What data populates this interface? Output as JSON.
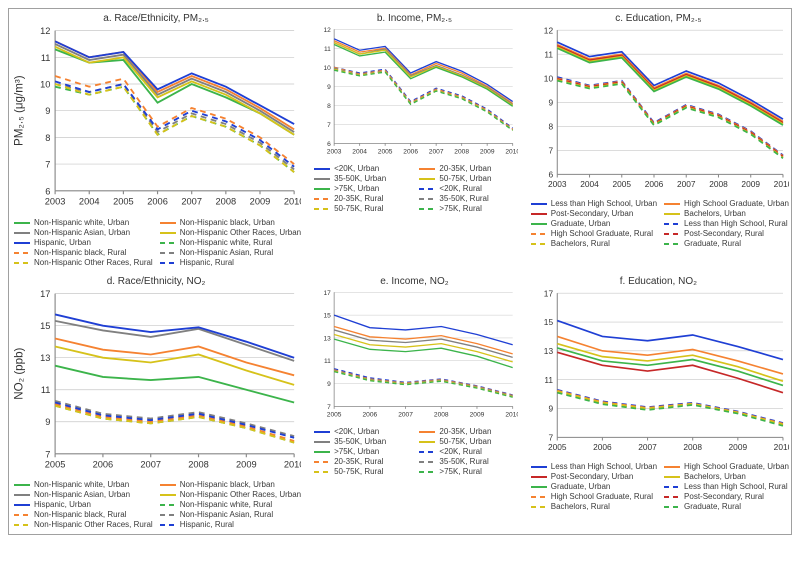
{
  "figure": {
    "background_color": "#ffffff",
    "border_color": "#a0a0a0",
    "grid_color": "#c8c8c8",
    "axis_color": "#8a8a8a",
    "label_fontsize": 10,
    "tick_fontsize": 8,
    "title_color": "#333333"
  },
  "panels": [
    {
      "id": "a",
      "title": "a. Race/Ethnicity, PM₂.₅",
      "ylabel": "PM₂.₅ (μg/m³)",
      "ylabel_fontsize": 10,
      "xticks": [
        2003,
        2004,
        2005,
        2006,
        2007,
        2008,
        2009,
        2010
      ],
      "ylim": [
        6,
        12
      ],
      "ytick_step": 1,
      "legend_cols": 2,
      "series": [
        {
          "label": "Non-Hispanic white, Urban",
          "color": "#3cb44b",
          "dash": "solid",
          "y": [
            11.3,
            10.8,
            10.9,
            9.3,
            10.0,
            9.5,
            8.9,
            8.1
          ]
        },
        {
          "label": "Non-Hispanic black, Urban",
          "color": "#f58231",
          "dash": "solid",
          "y": [
            11.6,
            11.0,
            11.2,
            9.7,
            10.3,
            9.8,
            9.1,
            8.3
          ]
        },
        {
          "label": "Non-Hispanic Asian, Urban",
          "color": "#808080",
          "dash": "solid",
          "y": [
            11.5,
            10.9,
            11.1,
            9.6,
            10.2,
            9.7,
            9.0,
            8.2
          ]
        },
        {
          "label": "Non-Hispanic Other Races, Urban",
          "color": "#d6c21a",
          "dash": "solid",
          "y": [
            11.4,
            10.8,
            11.0,
            9.5,
            10.1,
            9.6,
            8.9,
            8.1
          ]
        },
        {
          "label": "Hispanic, Urban",
          "color": "#1f3fd4",
          "dash": "solid",
          "y": [
            11.6,
            11.0,
            11.2,
            9.8,
            10.4,
            9.9,
            9.2,
            8.5
          ]
        },
        {
          "label": "Non-Hispanic white, Rural",
          "color": "#3cb44b",
          "dash": "dash",
          "y": [
            9.9,
            9.6,
            9.9,
            8.1,
            8.8,
            8.4,
            7.7,
            6.7
          ]
        },
        {
          "label": "Non-Hispanic black, Rural",
          "color": "#f58231",
          "dash": "dash",
          "y": [
            10.3,
            9.9,
            10.2,
            8.4,
            9.1,
            8.7,
            8.0,
            7.0
          ]
        },
        {
          "label": "Non-Hispanic Asian, Rural",
          "color": "#808080",
          "dash": "dash",
          "y": [
            10.0,
            9.7,
            10.0,
            8.2,
            8.9,
            8.5,
            7.8,
            6.8
          ]
        },
        {
          "label": "Non-Hispanic Other Races, Rural",
          "color": "#d6c21a",
          "dash": "dash",
          "y": [
            10.0,
            9.6,
            9.9,
            8.1,
            8.8,
            8.4,
            7.7,
            6.7
          ]
        },
        {
          "label": "Hispanic, Rural",
          "color": "#1f3fd4",
          "dash": "dash",
          "y": [
            10.1,
            9.7,
            10.0,
            8.3,
            9.0,
            8.6,
            7.9,
            6.9
          ]
        }
      ]
    },
    {
      "id": "b",
      "title": "b. Income, PM₂.₅",
      "ylabel": "",
      "xticks": [
        2003,
        2004,
        2005,
        2006,
        2007,
        2008,
        2009,
        2010
      ],
      "ylim": [
        6,
        12
      ],
      "ytick_step": 1,
      "legend_cols": 2,
      "series": [
        {
          "label": "<20K, Urban",
          "color": "#1f3fd4",
          "dash": "solid",
          "y": [
            11.5,
            10.9,
            11.1,
            9.7,
            10.3,
            9.8,
            9.1,
            8.2
          ]
        },
        {
          "label": "20-35K, Urban",
          "color": "#f58231",
          "dash": "solid",
          "y": [
            11.4,
            10.8,
            11.0,
            9.6,
            10.2,
            9.7,
            9.0,
            8.1
          ]
        },
        {
          "label": "35-50K, Urban",
          "color": "#808080",
          "dash": "solid",
          "y": [
            11.3,
            10.7,
            10.95,
            9.55,
            10.1,
            9.6,
            8.95,
            8.05
          ]
        },
        {
          "label": "50-75K, Urban",
          "color": "#d6c21a",
          "dash": "solid",
          "y": [
            11.3,
            10.7,
            10.9,
            9.5,
            10.05,
            9.55,
            8.9,
            8.0
          ]
        },
        {
          "label": ">75K, Urban",
          "color": "#3cb44b",
          "dash": "solid",
          "y": [
            11.2,
            10.6,
            10.8,
            9.4,
            10.0,
            9.5,
            8.85,
            7.95
          ]
        },
        {
          "label": "<20K, Rural",
          "color": "#1f3fd4",
          "dash": "dash",
          "y": [
            10.0,
            9.7,
            9.9,
            8.2,
            8.9,
            8.5,
            7.8,
            6.8
          ]
        },
        {
          "label": "20-35K, Rural",
          "color": "#f58231",
          "dash": "dash",
          "y": [
            10.0,
            9.65,
            9.85,
            8.15,
            8.85,
            8.45,
            7.75,
            6.75
          ]
        },
        {
          "label": "35-50K, Rural",
          "color": "#808080",
          "dash": "dash",
          "y": [
            9.95,
            9.6,
            9.8,
            8.1,
            8.8,
            8.4,
            7.7,
            6.72
          ]
        },
        {
          "label": "50-75K, Rural",
          "color": "#d6c21a",
          "dash": "dash",
          "y": [
            9.9,
            9.58,
            9.78,
            8.08,
            8.78,
            8.38,
            7.68,
            6.7
          ]
        },
        {
          "label": ">75K, Rural",
          "color": "#3cb44b",
          "dash": "dash",
          "y": [
            9.85,
            9.55,
            9.75,
            8.05,
            8.75,
            8.35,
            7.65,
            6.68
          ]
        }
      ]
    },
    {
      "id": "c",
      "title": "c. Education, PM₂.₅",
      "ylabel": "",
      "xticks": [
        2003,
        2004,
        2005,
        2006,
        2007,
        2008,
        2009,
        2010
      ],
      "ylim": [
        6,
        12
      ],
      "ytick_step": 1,
      "legend_cols": 2,
      "series": [
        {
          "label": "Less than High School, Urban",
          "color": "#1f3fd4",
          "dash": "solid",
          "y": [
            11.5,
            10.9,
            11.1,
            9.7,
            10.3,
            9.8,
            9.1,
            8.3
          ]
        },
        {
          "label": "High School Graduate, Urban",
          "color": "#f58231",
          "dash": "solid",
          "y": [
            11.4,
            10.8,
            11.0,
            9.6,
            10.2,
            9.7,
            9.0,
            8.2
          ]
        },
        {
          "label": "Post-Secondary, Urban",
          "color": "#c62828",
          "dash": "solid",
          "y": [
            11.35,
            10.75,
            10.95,
            9.55,
            10.15,
            9.65,
            8.95,
            8.15
          ]
        },
        {
          "label": "Bachelors, Urban",
          "color": "#d6c21a",
          "dash": "solid",
          "y": [
            11.3,
            10.7,
            10.9,
            9.5,
            10.1,
            9.6,
            8.9,
            8.1
          ]
        },
        {
          "label": "Graduate, Urban",
          "color": "#3cb44b",
          "dash": "solid",
          "y": [
            11.25,
            10.65,
            10.85,
            9.45,
            10.05,
            9.55,
            8.85,
            8.05
          ]
        },
        {
          "label": "Less than High School, Rural",
          "color": "#1f3fd4",
          "dash": "dash",
          "y": [
            10.05,
            9.7,
            9.9,
            8.15,
            8.9,
            8.5,
            7.8,
            6.8
          ]
        },
        {
          "label": "High School Graduate, Rural",
          "color": "#f58231",
          "dash": "dash",
          "y": [
            10.0,
            9.67,
            9.87,
            8.12,
            8.87,
            8.47,
            7.77,
            6.77
          ]
        },
        {
          "label": "Post-Secondary, Rural",
          "color": "#c62828",
          "dash": "dash",
          "y": [
            9.97,
            9.64,
            9.84,
            8.1,
            8.84,
            8.44,
            7.74,
            6.74
          ]
        },
        {
          "label": "Bachelors, Rural",
          "color": "#d6c21a",
          "dash": "dash",
          "y": [
            9.93,
            9.6,
            9.8,
            8.07,
            8.8,
            8.4,
            7.7,
            6.7
          ]
        },
        {
          "label": "Graduate, Rural",
          "color": "#3cb44b",
          "dash": "dash",
          "y": [
            9.9,
            9.57,
            9.77,
            8.04,
            8.77,
            8.37,
            7.67,
            6.67
          ]
        }
      ]
    },
    {
      "id": "d",
      "title": "d. Race/Ethnicity, NO₂",
      "ylabel": "NO₂ (ppb)",
      "ylabel_fontsize": 10,
      "xticks": [
        2005,
        2006,
        2007,
        2008,
        2009,
        2010
      ],
      "ylim": [
        7,
        17
      ],
      "ytick_step": 2,
      "legend_cols": 2,
      "series": [
        {
          "label": "Non-Hispanic white, Urban",
          "color": "#3cb44b",
          "dash": "solid",
          "y": [
            12.5,
            11.8,
            11.6,
            11.8,
            11.0,
            10.2
          ]
        },
        {
          "label": "Non-Hispanic black, Urban",
          "color": "#f58231",
          "dash": "solid",
          "y": [
            14.2,
            13.5,
            13.2,
            13.7,
            12.7,
            11.9
          ]
        },
        {
          "label": "Non-Hispanic Asian, Urban",
          "color": "#808080",
          "dash": "solid",
          "y": [
            15.3,
            14.7,
            14.3,
            14.8,
            13.8,
            12.8
          ]
        },
        {
          "label": "Non-Hispanic Other Races, Urban",
          "color": "#d6c21a",
          "dash": "solid",
          "y": [
            13.7,
            13.0,
            12.7,
            13.2,
            12.2,
            11.3
          ]
        },
        {
          "label": "Hispanic, Urban",
          "color": "#1f3fd4",
          "dash": "solid",
          "y": [
            15.7,
            15.0,
            14.6,
            14.9,
            14.0,
            13.0
          ]
        },
        {
          "label": "Non-Hispanic white, Rural",
          "color": "#3cb44b",
          "dash": "dash",
          "y": [
            10.0,
            9.2,
            8.9,
            9.3,
            8.6,
            7.7
          ]
        },
        {
          "label": "Non-Hispanic black, Rural",
          "color": "#f58231",
          "dash": "dash",
          "y": [
            10.1,
            9.3,
            9.0,
            9.4,
            8.7,
            7.8
          ]
        },
        {
          "label": "Non-Hispanic Asian, Rural",
          "color": "#808080",
          "dash": "dash",
          "y": [
            10.3,
            9.5,
            9.2,
            9.6,
            8.9,
            8.1
          ]
        },
        {
          "label": "Non-Hispanic Other Races, Rural",
          "color": "#d6c21a",
          "dash": "dash",
          "y": [
            10.0,
            9.2,
            8.9,
            9.3,
            8.6,
            7.7
          ]
        },
        {
          "label": "Hispanic, Rural",
          "color": "#1f3fd4",
          "dash": "dash",
          "y": [
            10.2,
            9.4,
            9.1,
            9.5,
            8.8,
            8.0
          ]
        }
      ]
    },
    {
      "id": "e",
      "title": "e. Income, NO₂",
      "ylabel": "",
      "xticks": [
        2005,
        2006,
        2007,
        2008,
        2009,
        2010
      ],
      "ylim": [
        7,
        17
      ],
      "ytick_step": 2,
      "legend_cols": 2,
      "series": [
        {
          "label": "<20K, Urban",
          "color": "#1f3fd4",
          "dash": "solid",
          "y": [
            15.0,
            13.9,
            13.7,
            14.0,
            13.3,
            12.4
          ]
        },
        {
          "label": "20-35K, Urban",
          "color": "#f58231",
          "dash": "solid",
          "y": [
            14.0,
            13.1,
            12.9,
            13.2,
            12.5,
            11.6
          ]
        },
        {
          "label": "35-50K, Urban",
          "color": "#808080",
          "dash": "solid",
          "y": [
            13.7,
            12.8,
            12.6,
            12.9,
            12.2,
            11.3
          ]
        },
        {
          "label": "50-75K, Urban",
          "color": "#d6c21a",
          "dash": "solid",
          "y": [
            13.3,
            12.4,
            12.2,
            12.5,
            11.8,
            10.9
          ]
        },
        {
          "label": ">75K, Urban",
          "color": "#3cb44b",
          "dash": "solid",
          "y": [
            12.9,
            12.0,
            11.8,
            12.1,
            11.4,
            10.4
          ]
        },
        {
          "label": "<20K, Rural",
          "color": "#1f3fd4",
          "dash": "dash",
          "y": [
            10.3,
            9.5,
            9.1,
            9.4,
            8.8,
            8.0
          ]
        },
        {
          "label": "20-35K, Rural",
          "color": "#f58231",
          "dash": "dash",
          "y": [
            10.2,
            9.4,
            9.05,
            9.35,
            8.75,
            7.95
          ]
        },
        {
          "label": "35-50K, Rural",
          "color": "#808080",
          "dash": "dash",
          "y": [
            10.15,
            9.35,
            9.0,
            9.3,
            8.7,
            7.9
          ]
        },
        {
          "label": "50-75K, Rural",
          "color": "#d6c21a",
          "dash": "dash",
          "y": [
            10.1,
            9.3,
            8.95,
            9.25,
            8.65,
            7.85
          ]
        },
        {
          "label": ">75K, Rural",
          "color": "#3cb44b",
          "dash": "dash",
          "y": [
            10.05,
            9.25,
            8.9,
            9.2,
            8.6,
            7.8
          ]
        }
      ]
    },
    {
      "id": "f",
      "title": "f. Education, NO₂",
      "ylabel": "",
      "xticks": [
        2005,
        2006,
        2007,
        2008,
        2009,
        2010
      ],
      "ylim": [
        7,
        17
      ],
      "ytick_step": 2,
      "legend_cols": 2,
      "series": [
        {
          "label": "Less than High School, Urban",
          "color": "#1f3fd4",
          "dash": "solid",
          "y": [
            15.1,
            14.0,
            13.7,
            14.1,
            13.3,
            12.4
          ]
        },
        {
          "label": "High School Graduate, Urban",
          "color": "#f58231",
          "dash": "solid",
          "y": [
            14.0,
            13.0,
            12.7,
            13.1,
            12.3,
            11.4
          ]
        },
        {
          "label": "Post-Secondary, Urban",
          "color": "#c62828",
          "dash": "solid",
          "y": [
            12.9,
            12.0,
            11.6,
            12.0,
            11.1,
            10.1
          ]
        },
        {
          "label": "Bachelors, Urban",
          "color": "#d6c21a",
          "dash": "solid",
          "y": [
            13.5,
            12.6,
            12.3,
            12.7,
            11.9,
            10.9
          ]
        },
        {
          "label": "Graduate, Urban",
          "color": "#3cb44b",
          "dash": "solid",
          "y": [
            13.2,
            12.3,
            12.0,
            12.4,
            11.6,
            10.6
          ]
        },
        {
          "label": "Less than High School, Rural",
          "color": "#1f3fd4",
          "dash": "dash",
          "y": [
            10.3,
            9.5,
            9.1,
            9.4,
            8.8,
            8.0
          ]
        },
        {
          "label": "High School Graduate, Rural",
          "color": "#f58231",
          "dash": "dash",
          "y": [
            10.25,
            9.45,
            9.05,
            9.35,
            8.75,
            7.95
          ]
        },
        {
          "label": "Post-Secondary, Rural",
          "color": "#c62828",
          "dash": "dash",
          "y": [
            10.15,
            9.35,
            8.95,
            9.3,
            8.7,
            7.85
          ]
        },
        {
          "label": "Bachelors, Rural",
          "color": "#d6c21a",
          "dash": "dash",
          "y": [
            10.2,
            9.4,
            9.0,
            9.32,
            8.72,
            7.9
          ]
        },
        {
          "label": "Graduate, Rural",
          "color": "#3cb44b",
          "dash": "dash",
          "y": [
            10.1,
            9.3,
            8.9,
            9.25,
            8.65,
            7.8
          ]
        }
      ]
    }
  ]
}
